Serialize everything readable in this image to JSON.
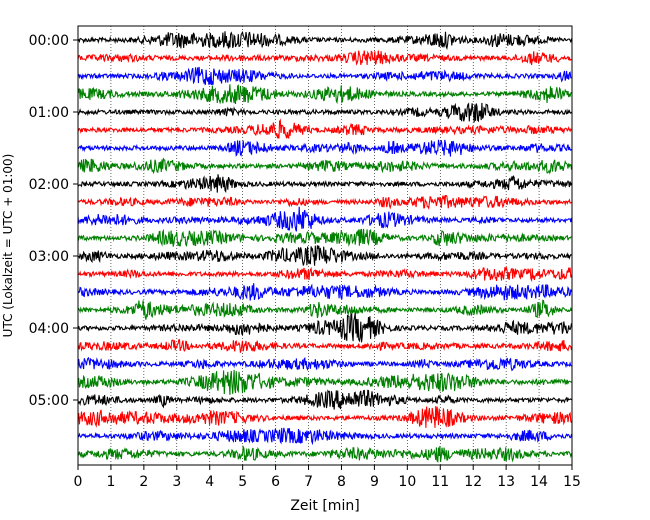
{
  "chart_data": {
    "type": "line",
    "title": "",
    "xlabel": "Zeit  [min]",
    "ylabel": "UTC (Lokalzeit = UTC + 01:00)",
    "xlim": [
      0,
      15
    ],
    "x_ticks": [
      0,
      1,
      2,
      3,
      4,
      5,
      6,
      7,
      8,
      9,
      10,
      11,
      12,
      13,
      14,
      15
    ],
    "y_tick_labels": [
      "00:00",
      "01:00",
      "02:00",
      "03:00",
      "04:00",
      "05:00"
    ],
    "rows_per_hour": 4,
    "minutes_per_row": 15,
    "row_count": 24,
    "color_cycle": [
      "#000000",
      "#ff0000",
      "#0000ff",
      "#008000"
    ],
    "grid": "vertical dotted at each minute",
    "series_description": "Seismogram helicorder: each row is 15 minutes of ground motion trace starting at the labeled UTC time"
  }
}
